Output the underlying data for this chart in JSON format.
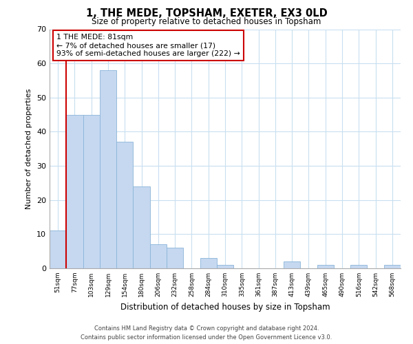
{
  "title": "1, THE MEDE, TOPSHAM, EXETER, EX3 0LD",
  "subtitle": "Size of property relative to detached houses in Topsham",
  "xlabel": "Distribution of detached houses by size in Topsham",
  "ylabel": "Number of detached properties",
  "bin_labels": [
    "51sqm",
    "77sqm",
    "103sqm",
    "129sqm",
    "154sqm",
    "180sqm",
    "206sqm",
    "232sqm",
    "258sqm",
    "284sqm",
    "310sqm",
    "335sqm",
    "361sqm",
    "387sqm",
    "413sqm",
    "439sqm",
    "465sqm",
    "490sqm",
    "516sqm",
    "542sqm",
    "568sqm"
  ],
  "bar_heights": [
    11,
    45,
    45,
    58,
    37,
    24,
    7,
    6,
    0,
    3,
    1,
    0,
    0,
    0,
    2,
    0,
    1,
    0,
    1,
    0,
    1
  ],
  "bar_color": "#c5d8f0",
  "bar_edge_color": "#8ab4d8",
  "highlight_label": "1 THE MEDE: 81sqm",
  "annotation_line1": "← 7% of detached houses are smaller (17)",
  "annotation_line2": "93% of semi-detached houses are larger (222) →",
  "annotation_box_color": "#ffffff",
  "annotation_box_edge": "#cc0000",
  "vline_color": "#cc0000",
  "ylim": [
    0,
    70
  ],
  "yticks": [
    0,
    10,
    20,
    30,
    40,
    50,
    60,
    70
  ],
  "footer1": "Contains HM Land Registry data © Crown copyright and database right 2024.",
  "footer2": "Contains public sector information licensed under the Open Government Licence v3.0.",
  "bg_color": "#ffffff",
  "grid_color": "#c8dff0"
}
